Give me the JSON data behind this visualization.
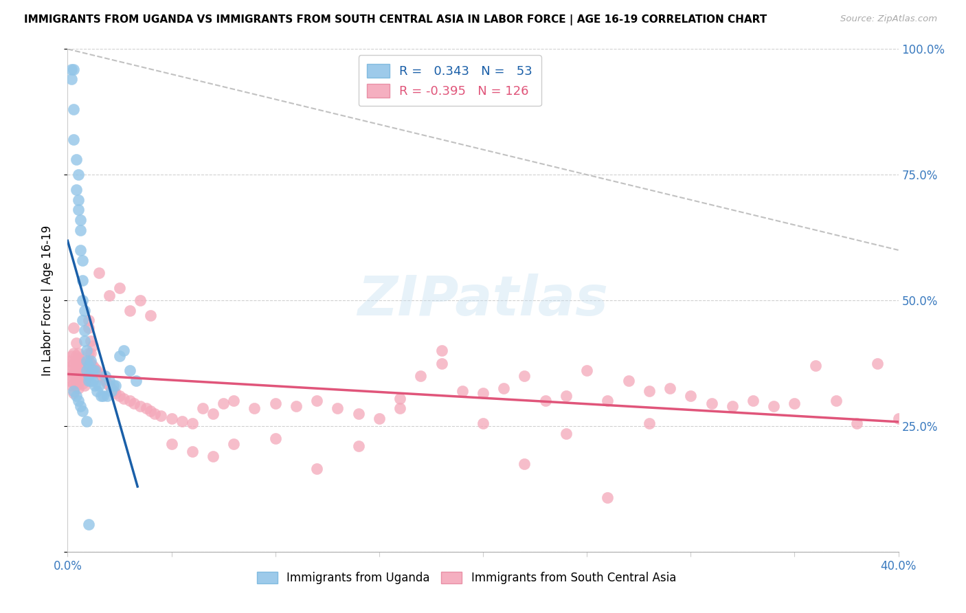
{
  "title": "IMMIGRANTS FROM UGANDA VS IMMIGRANTS FROM SOUTH CENTRAL ASIA IN LABOR FORCE | AGE 16-19 CORRELATION CHART",
  "source": "Source: ZipAtlas.com",
  "ylabel": "In Labor Force | Age 16-19",
  "xlim": [
    0.0,
    0.4
  ],
  "ylim": [
    0.0,
    1.0
  ],
  "uganda_R": "0.343",
  "uganda_N": "53",
  "sca_R": "-0.395",
  "sca_N": "126",
  "uganda_color": "#92c5e8",
  "sca_color": "#f4a7b9",
  "uganda_line_color": "#1a5fa8",
  "sca_line_color": "#e0557a",
  "dashed_color": "#bbbbbb",
  "watermark": "ZIPatlas",
  "uganda_x": [
    0.002,
    0.002,
    0.003,
    0.003,
    0.003,
    0.004,
    0.004,
    0.005,
    0.005,
    0.005,
    0.006,
    0.006,
    0.006,
    0.007,
    0.007,
    0.007,
    0.007,
    0.008,
    0.008,
    0.008,
    0.009,
    0.009,
    0.009,
    0.01,
    0.01,
    0.01,
    0.011,
    0.011,
    0.012,
    0.012,
    0.013,
    0.013,
    0.014,
    0.015,
    0.016,
    0.017,
    0.018,
    0.019,
    0.02,
    0.021,
    0.022,
    0.023,
    0.025,
    0.027,
    0.03,
    0.033,
    0.003,
    0.004,
    0.005,
    0.006,
    0.007,
    0.009,
    0.01
  ],
  "uganda_y": [
    0.96,
    0.94,
    0.88,
    0.82,
    0.96,
    0.78,
    0.72,
    0.7,
    0.75,
    0.68,
    0.64,
    0.6,
    0.66,
    0.58,
    0.54,
    0.5,
    0.46,
    0.48,
    0.44,
    0.42,
    0.4,
    0.38,
    0.36,
    0.37,
    0.35,
    0.34,
    0.34,
    0.38,
    0.36,
    0.34,
    0.33,
    0.36,
    0.32,
    0.33,
    0.31,
    0.31,
    0.35,
    0.31,
    0.34,
    0.32,
    0.33,
    0.33,
    0.39,
    0.4,
    0.36,
    0.34,
    0.32,
    0.31,
    0.3,
    0.29,
    0.28,
    0.26,
    0.055
  ],
  "sca_x": [
    0.001,
    0.001,
    0.001,
    0.002,
    0.002,
    0.002,
    0.002,
    0.003,
    0.003,
    0.003,
    0.003,
    0.003,
    0.004,
    0.004,
    0.004,
    0.004,
    0.005,
    0.005,
    0.005,
    0.005,
    0.006,
    0.006,
    0.006,
    0.007,
    0.007,
    0.007,
    0.008,
    0.008,
    0.008,
    0.009,
    0.009,
    0.01,
    0.01,
    0.011,
    0.011,
    0.012,
    0.013,
    0.014,
    0.015,
    0.016,
    0.017,
    0.018,
    0.019,
    0.02,
    0.021,
    0.022,
    0.023,
    0.025,
    0.027,
    0.03,
    0.032,
    0.035,
    0.038,
    0.04,
    0.042,
    0.045,
    0.05,
    0.055,
    0.06,
    0.065,
    0.07,
    0.075,
    0.08,
    0.09,
    0.1,
    0.11,
    0.12,
    0.13,
    0.14,
    0.15,
    0.16,
    0.17,
    0.18,
    0.19,
    0.2,
    0.21,
    0.22,
    0.23,
    0.24,
    0.25,
    0.26,
    0.27,
    0.28,
    0.29,
    0.3,
    0.31,
    0.32,
    0.33,
    0.34,
    0.35,
    0.36,
    0.37,
    0.38,
    0.39,
    0.4,
    0.003,
    0.004,
    0.005,
    0.006,
    0.007,
    0.008,
    0.009,
    0.01,
    0.01,
    0.011,
    0.012,
    0.015,
    0.02,
    0.025,
    0.03,
    0.035,
    0.04,
    0.05,
    0.06,
    0.07,
    0.08,
    0.1,
    0.12,
    0.14,
    0.16,
    0.18,
    0.2,
    0.22,
    0.24,
    0.26,
    0.28
  ],
  "sca_y": [
    0.38,
    0.36,
    0.34,
    0.39,
    0.37,
    0.35,
    0.33,
    0.395,
    0.375,
    0.355,
    0.335,
    0.315,
    0.39,
    0.37,
    0.35,
    0.33,
    0.385,
    0.365,
    0.345,
    0.325,
    0.38,
    0.36,
    0.34,
    0.375,
    0.355,
    0.335,
    0.37,
    0.35,
    0.33,
    0.365,
    0.345,
    0.46,
    0.38,
    0.395,
    0.375,
    0.37,
    0.365,
    0.36,
    0.355,
    0.35,
    0.345,
    0.34,
    0.335,
    0.33,
    0.325,
    0.32,
    0.315,
    0.31,
    0.305,
    0.3,
    0.295,
    0.29,
    0.285,
    0.28,
    0.275,
    0.27,
    0.265,
    0.26,
    0.255,
    0.285,
    0.275,
    0.295,
    0.3,
    0.285,
    0.295,
    0.29,
    0.3,
    0.285,
    0.275,
    0.265,
    0.305,
    0.35,
    0.375,
    0.32,
    0.315,
    0.325,
    0.35,
    0.3,
    0.31,
    0.36,
    0.3,
    0.34,
    0.32,
    0.325,
    0.31,
    0.295,
    0.29,
    0.3,
    0.29,
    0.295,
    0.37,
    0.3,
    0.255,
    0.375,
    0.265,
    0.445,
    0.415,
    0.395,
    0.375,
    0.355,
    0.37,
    0.35,
    0.445,
    0.395,
    0.42,
    0.41,
    0.555,
    0.51,
    0.525,
    0.48,
    0.5,
    0.47,
    0.215,
    0.2,
    0.19,
    0.215,
    0.225,
    0.165,
    0.21,
    0.285,
    0.4,
    0.255,
    0.175,
    0.235,
    0.108,
    0.255
  ]
}
